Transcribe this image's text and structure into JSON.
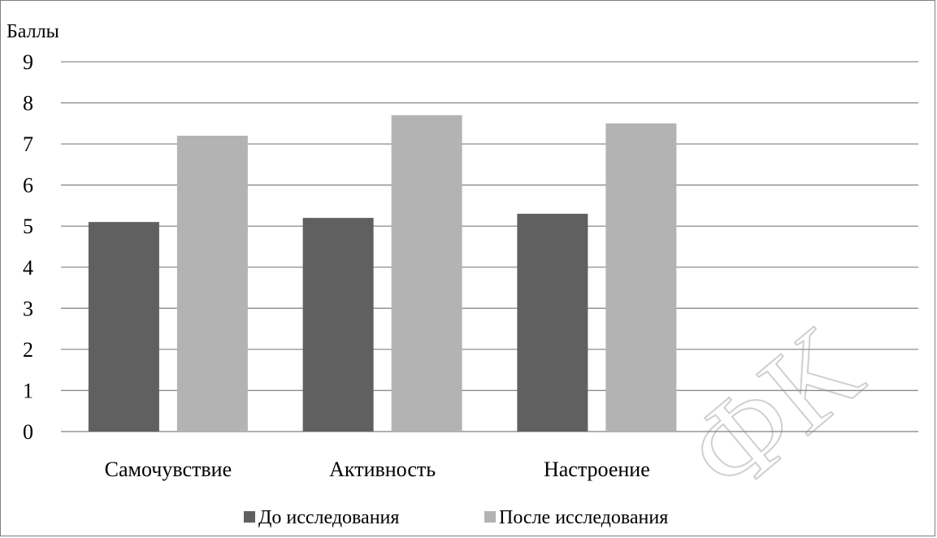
{
  "chart_data": {
    "type": "bar",
    "ylabel": "Баллы",
    "xlabel": "",
    "ylim": [
      0,
      9
    ],
    "yticks": [
      0,
      1,
      2,
      3,
      4,
      5,
      6,
      7,
      8,
      9
    ],
    "grid": true,
    "legend_position": "bottom",
    "categories": [
      "Самочувствие",
      "Активность",
      "Настроение"
    ],
    "category_slots": 4,
    "series": [
      {
        "name": "До исследования",
        "values": [
          5.1,
          5.2,
          5.3
        ],
        "color": "#606060"
      },
      {
        "name": "После исследования",
        "values": [
          7.2,
          7.7,
          7.5
        ],
        "color": "#b3b3b3"
      }
    ]
  },
  "watermark": {
    "text": "ФК",
    "color": "#cfcfcf"
  }
}
